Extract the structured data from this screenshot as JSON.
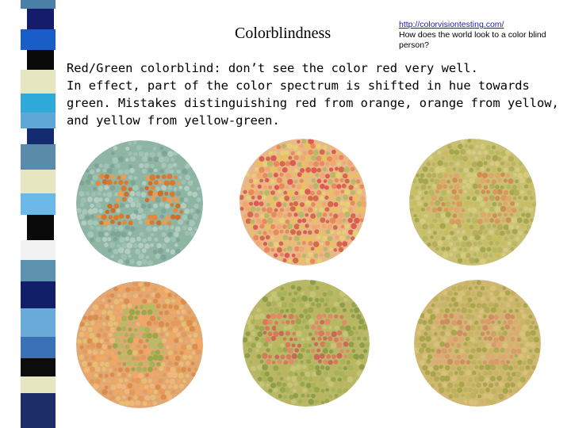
{
  "slide": {
    "title": "Colorblindness",
    "link": "http://colorvisiontesting.com/",
    "question": "How does the world look to a color blind person?",
    "paragraph_1": "Red/Green colorblind: don’t see the color red very well.",
    "paragraph_2": "In effect, part of the color spectrum is shifted in hue towards green. Mistakes distinguishing red from orange, orange from yellow, and yellow from yellow-green."
  },
  "stripe_colors": [
    "#4a7fa6",
    "#151d6b",
    "#1a5cc8",
    "#0a0a0a",
    "#e6e6c0",
    "#2fa9d8",
    "#5ea8d8",
    "#152b6f",
    "#5a8ba8",
    "#e6e6c0",
    "#6ab9e8",
    "#0a0a0a",
    "#f2f2f2",
    "#5c92ae",
    "#111f68",
    "#6aaad8",
    "#3a71b6",
    "#0c0c0c",
    "#e6e6c0",
    "#1c2d68"
  ],
  "plates": [
    {
      "number": "25",
      "background": "#8fb5a6",
      "dot_colors": [
        "#9ec1b2",
        "#7ea696",
        "#b3cdc1",
        "#8db6a0",
        "#a6c7b6"
      ],
      "figure_colors": [
        "#e38a3a",
        "#d97a2c",
        "#ef9c4b",
        "#cf6f2a"
      ]
    },
    {
      "number": "",
      "background": "#e8b88a",
      "dot_colors": [
        "#e88a5a",
        "#e9c25a",
        "#d46a4a",
        "#f0a870",
        "#b8b868",
        "#dd5a55",
        "#e6d070"
      ],
      "figure_colors": []
    },
    {
      "number": "45",
      "background": "#c9c075",
      "dot_colors": [
        "#b9b860",
        "#a4a74c",
        "#d6cc7d",
        "#c8be5f",
        "#b5ad5a"
      ],
      "figure_colors": [
        "#d99a5c",
        "#e0a768",
        "#cf8d50"
      ]
    },
    {
      "number": "6",
      "background": "#e0a874",
      "dot_colors": [
        "#e69a5a",
        "#f0b878",
        "#dd8c4a",
        "#e6c070",
        "#f2a862"
      ],
      "figure_colors": [
        "#a9b256",
        "#9aa848",
        "#b5bc62"
      ]
    },
    {
      "number": "56",
      "background": "#b8b868",
      "dot_colors": [
        "#9aa64c",
        "#b9b65e",
        "#a9b256",
        "#c8c476",
        "#8e9e48"
      ],
      "figure_colors": [
        "#d87a5a",
        "#c96a58",
        "#e08a68"
      ]
    },
    {
      "number": "29",
      "background": "#d0b872",
      "dot_colors": [
        "#bfb25c",
        "#a8a64a",
        "#d6c278",
        "#c9b664",
        "#b2aa56"
      ],
      "figure_colors": [
        "#d89b6c",
        "#cf8d62",
        "#e0a874"
      ]
    }
  ]
}
